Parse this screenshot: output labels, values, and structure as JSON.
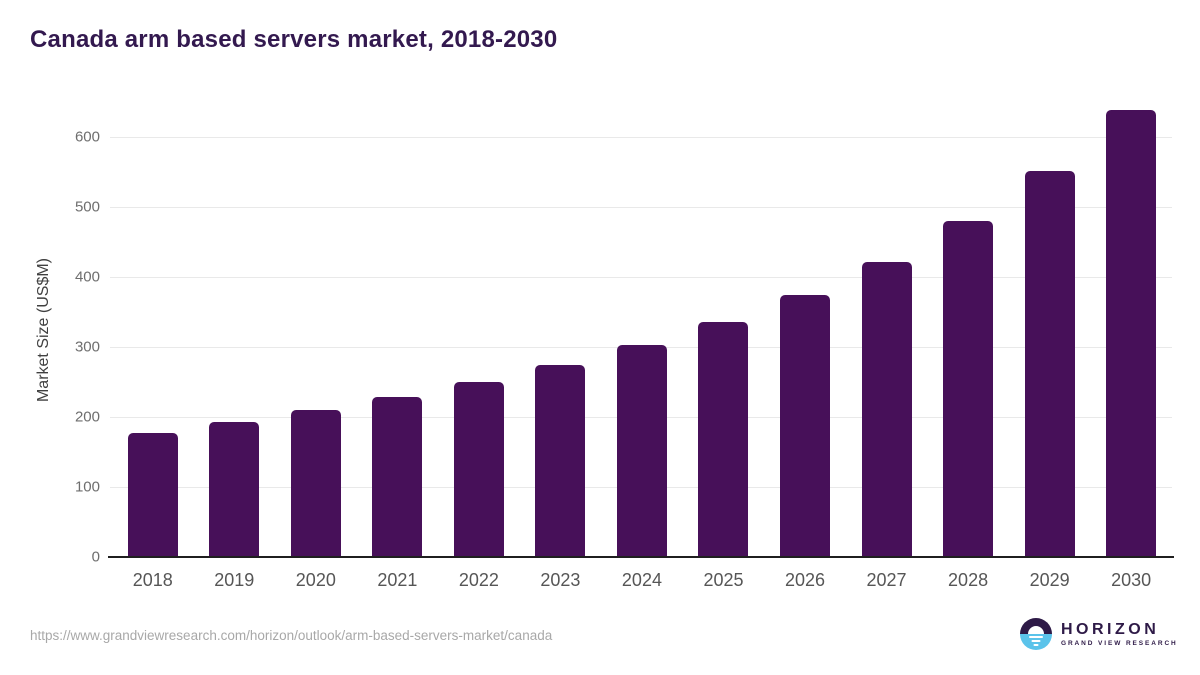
{
  "title": "Canada arm based servers market, 2018-2030",
  "source_url": "https://www.grandviewresearch.com/horizon/outlook/arm-based-servers-market/canada",
  "logo": {
    "name": "HORIZON",
    "subtitle": "GRAND VIEW RESEARCH",
    "icon": "horizon-sunset-circle-icon",
    "purple": "#2e1a47",
    "blue": "#5bc3ea"
  },
  "colors": {
    "bar": "#471059",
    "title": "#33194f",
    "gridline": "#e9e9e9",
    "axis_line": "#1f1f1f",
    "tick_label": "#6e6e6e",
    "x_label": "#565656",
    "url_text": "#a8a8a8"
  },
  "chart_data": {
    "type": "bar",
    "title": "Canada arm based servers market, 2018-2030",
    "categories": [
      "2018",
      "2019",
      "2020",
      "2021",
      "2022",
      "2023",
      "2024",
      "2025",
      "2026",
      "2027",
      "2028",
      "2029",
      "2030"
    ],
    "values": [
      177,
      193,
      210,
      228,
      250,
      274,
      303,
      336,
      375,
      422,
      480,
      551,
      639
    ],
    "xlabel": "",
    "ylabel": "Market Size (US$M)",
    "yticks": [
      0,
      100,
      200,
      300,
      400,
      500,
      600
    ],
    "ylim": [
      0,
      653
    ],
    "grid": true,
    "legend": false,
    "bar_color": "#471059"
  }
}
